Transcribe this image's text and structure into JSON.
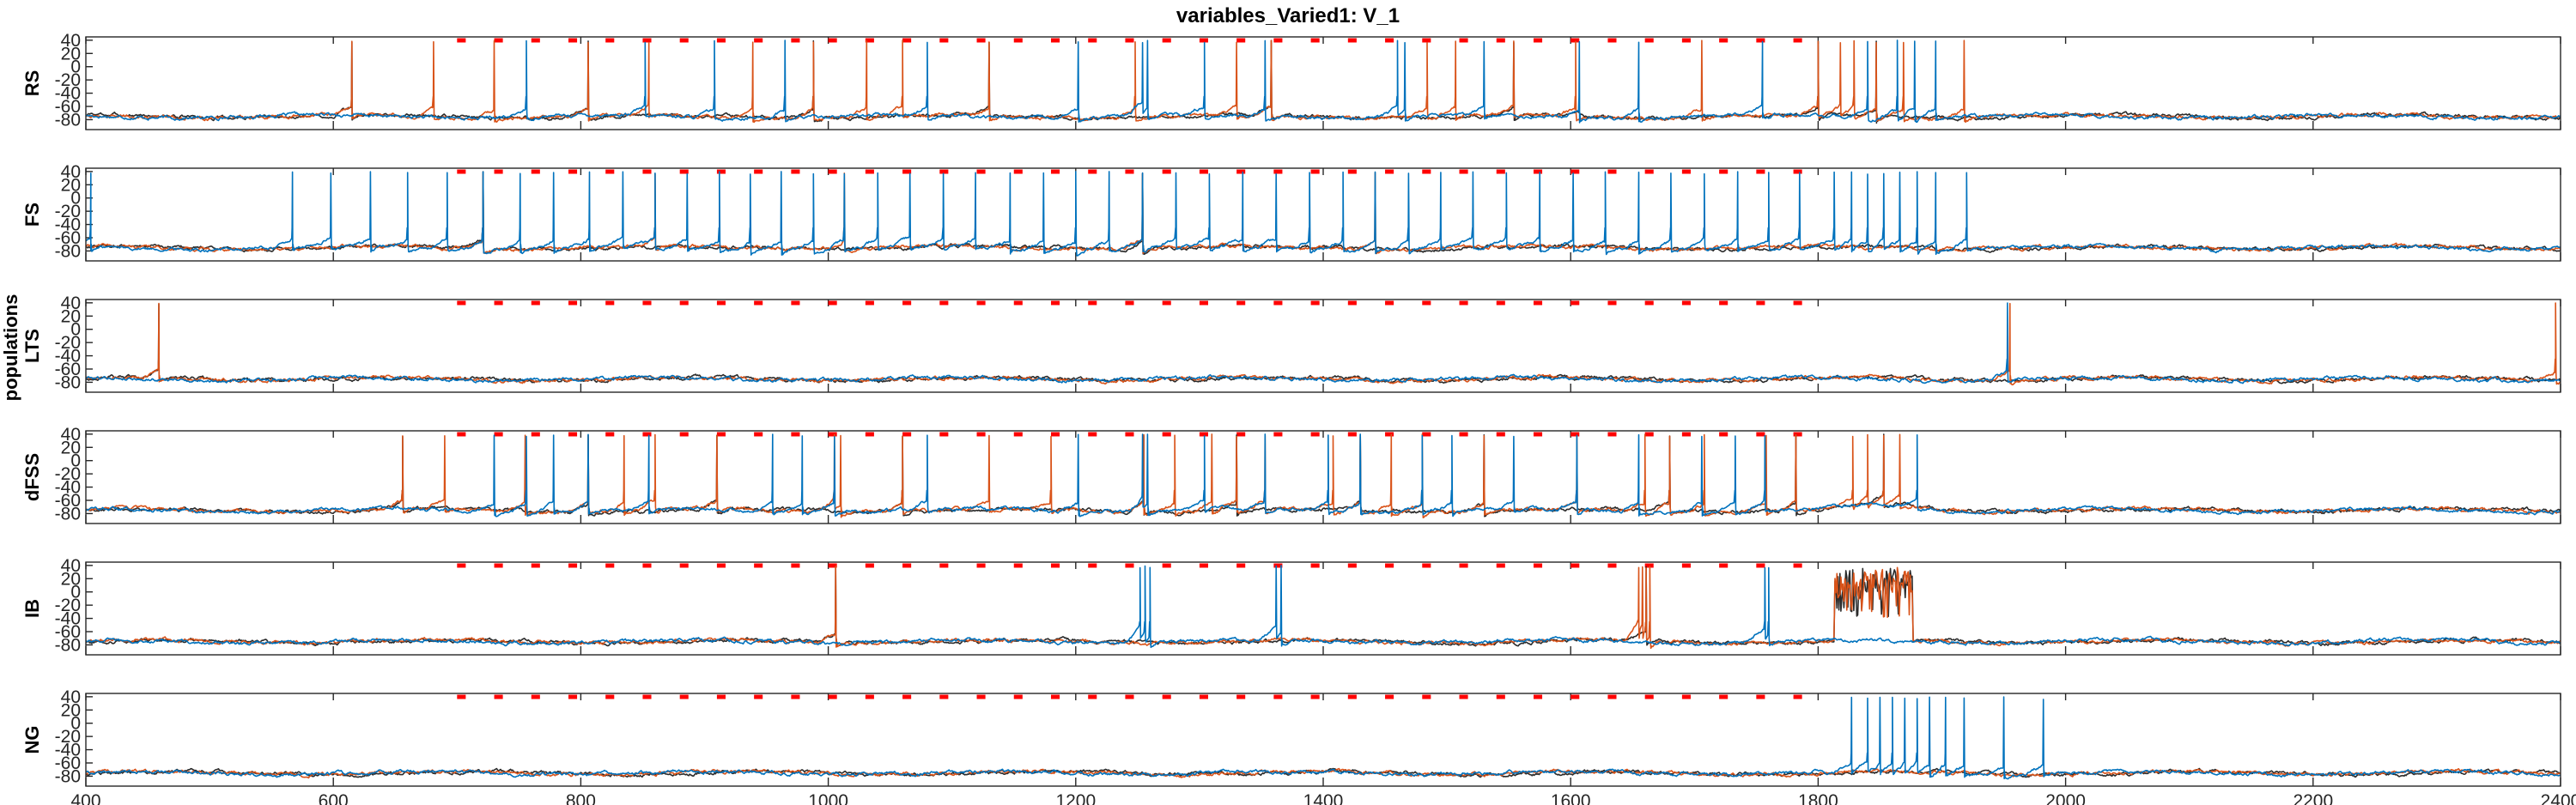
{
  "chart_data": {
    "type": "line",
    "title": "variables_Varied1: V_1",
    "ylabel": "populations",
    "xlim": [
      400,
      2400
    ],
    "ylim": [
      -95,
      45
    ],
    "x_ticks": [
      400,
      600,
      800,
      1000,
      1200,
      1400,
      1600,
      1800,
      2000,
      2200,
      2400
    ],
    "y_ticks": [
      40,
      20,
      0,
      -20,
      -40,
      -60,
      -80
    ],
    "grid": "x only",
    "colors": {
      "blue": "#0072BD",
      "orange": "#D95319",
      "red": "#FF0000",
      "dark": "#2b2b2b"
    },
    "baseline_mV": -75,
    "panels": [
      {
        "name": "RS",
        "stim_markers": true,
        "series": [
          {
            "color": "blue",
            "spikes": [
              756,
              852,
              908,
              965,
              1080,
              1202,
              1254,
              1258,
              1304,
              1353,
              1460,
              1466,
              1530,
              1607,
              1655,
              1755,
              1840,
              1864,
              1878,
              1895
            ]
          },
          {
            "color": "orange",
            "spikes": [
              615,
              681,
              730,
              806,
              855,
              939,
              988,
              1031,
              1060,
              1130,
              1248,
              1330,
              1358,
              1484,
              1507,
              1554,
              1604,
              1706,
              1800,
              1818,
              1829,
              1847,
              1869,
              1918
            ]
          }
        ],
        "tail_burst": null
      },
      {
        "name": "FS",
        "stim_markers": true,
        "series": [
          {
            "color": "blue",
            "spikes": [
              404,
              567,
              598,
              630,
              660,
              692,
              721,
              751,
              778,
              807,
              834,
              860,
              886,
              912,
              937,
              962,
              988,
              1013,
              1040,
              1066,
              1093,
              1119,
              1147,
              1174,
              1200,
              1227,
              1254,
              1281,
              1308,
              1335,
              1362,
              1389,
              1416,
              1442,
              1469,
              1495,
              1521,
              1548,
              1575,
              1602,
              1628,
              1655,
              1681,
              1708,
              1735,
              1760,
              1785,
              1813,
              1827,
              1840,
              1853,
              1866,
              1880,
              1895,
              1920
            ]
          },
          {
            "color": "orange",
            "spikes": [
              721,
              860,
              1013,
              1254,
              1442
            ]
          }
        ],
        "tail_burst": null
      },
      {
        "name": "LTS",
        "stim_markers": true,
        "series": [
          {
            "color": "blue",
            "spikes": [
              1953
            ]
          },
          {
            "color": "orange",
            "spikes": [
              459,
              1955,
              2396
            ]
          }
        ],
        "tail_burst": null
      },
      {
        "name": "dFSS",
        "stim_markers": true,
        "series": [
          {
            "color": "blue",
            "spikes": [
              730,
              756,
              778,
              806,
              855,
              955,
              979,
              1005,
              1080,
              1202,
              1254,
              1258,
              1304,
              1353,
              1404,
              1430,
              1480,
              1504,
              1554,
              1605,
              1655,
              1706,
              1733,
              1757,
              1880
            ]
          },
          {
            "color": "orange",
            "spikes": [
              656,
              690,
              755,
              806,
              835,
              860,
              910,
              1005,
              1010,
              1060,
              1130,
              1180,
              1255,
              1280,
              1310,
              1330,
              1353,
              1408,
              1430,
              1455,
              1480,
              1530,
              1605,
              1660,
              1680,
              1708,
              1758,
              1782,
              1828,
              1840,
              1853,
              1866
            ]
          }
        ],
        "tail_burst": null
      },
      {
        "name": "IB",
        "stim_markers": true,
        "series": [
          {
            "color": "blue",
            "spikes": [
              1252,
              1256,
              1260,
              1362,
              1366,
              1757,
              1760
            ]
          },
          {
            "color": "orange",
            "spikes": [
              1006,
              1655,
              1658,
              1661,
              1664
            ]
          }
        ],
        "tail_burst": [
          1813,
          1876
        ]
      },
      {
        "name": "NG",
        "stim_markers": true,
        "series": [
          {
            "color": "blue",
            "spikes": [
              1827,
              1840,
              1850,
              1860,
              1870,
              1880,
              1890,
              1903,
              1918,
              1950,
              1982
            ]
          },
          {
            "color": "orange",
            "spikes": []
          }
        ],
        "tail_burst": null
      }
    ]
  }
}
